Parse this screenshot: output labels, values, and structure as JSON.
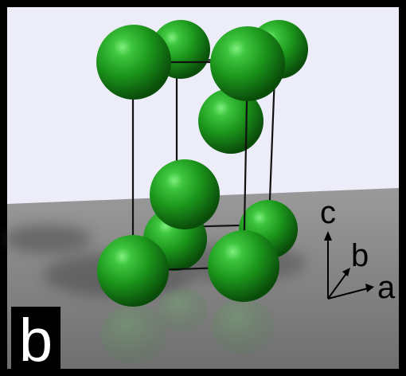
{
  "panel": {
    "label": "b"
  },
  "axes": {
    "a_label": "a",
    "b_label": "b",
    "c_label": "c"
  },
  "colors": {
    "background_wall": "#ecedf8",
    "floor": "#8a8a8a",
    "atom": "#1f9a1f",
    "bond": "#111111",
    "border": "#000000",
    "label_box": "#000000",
    "label_text": "#ffffff"
  },
  "structure": {
    "atom_count": 10,
    "element_color_name": "green-spheres",
    "bond_style": "thin-black-lines"
  }
}
